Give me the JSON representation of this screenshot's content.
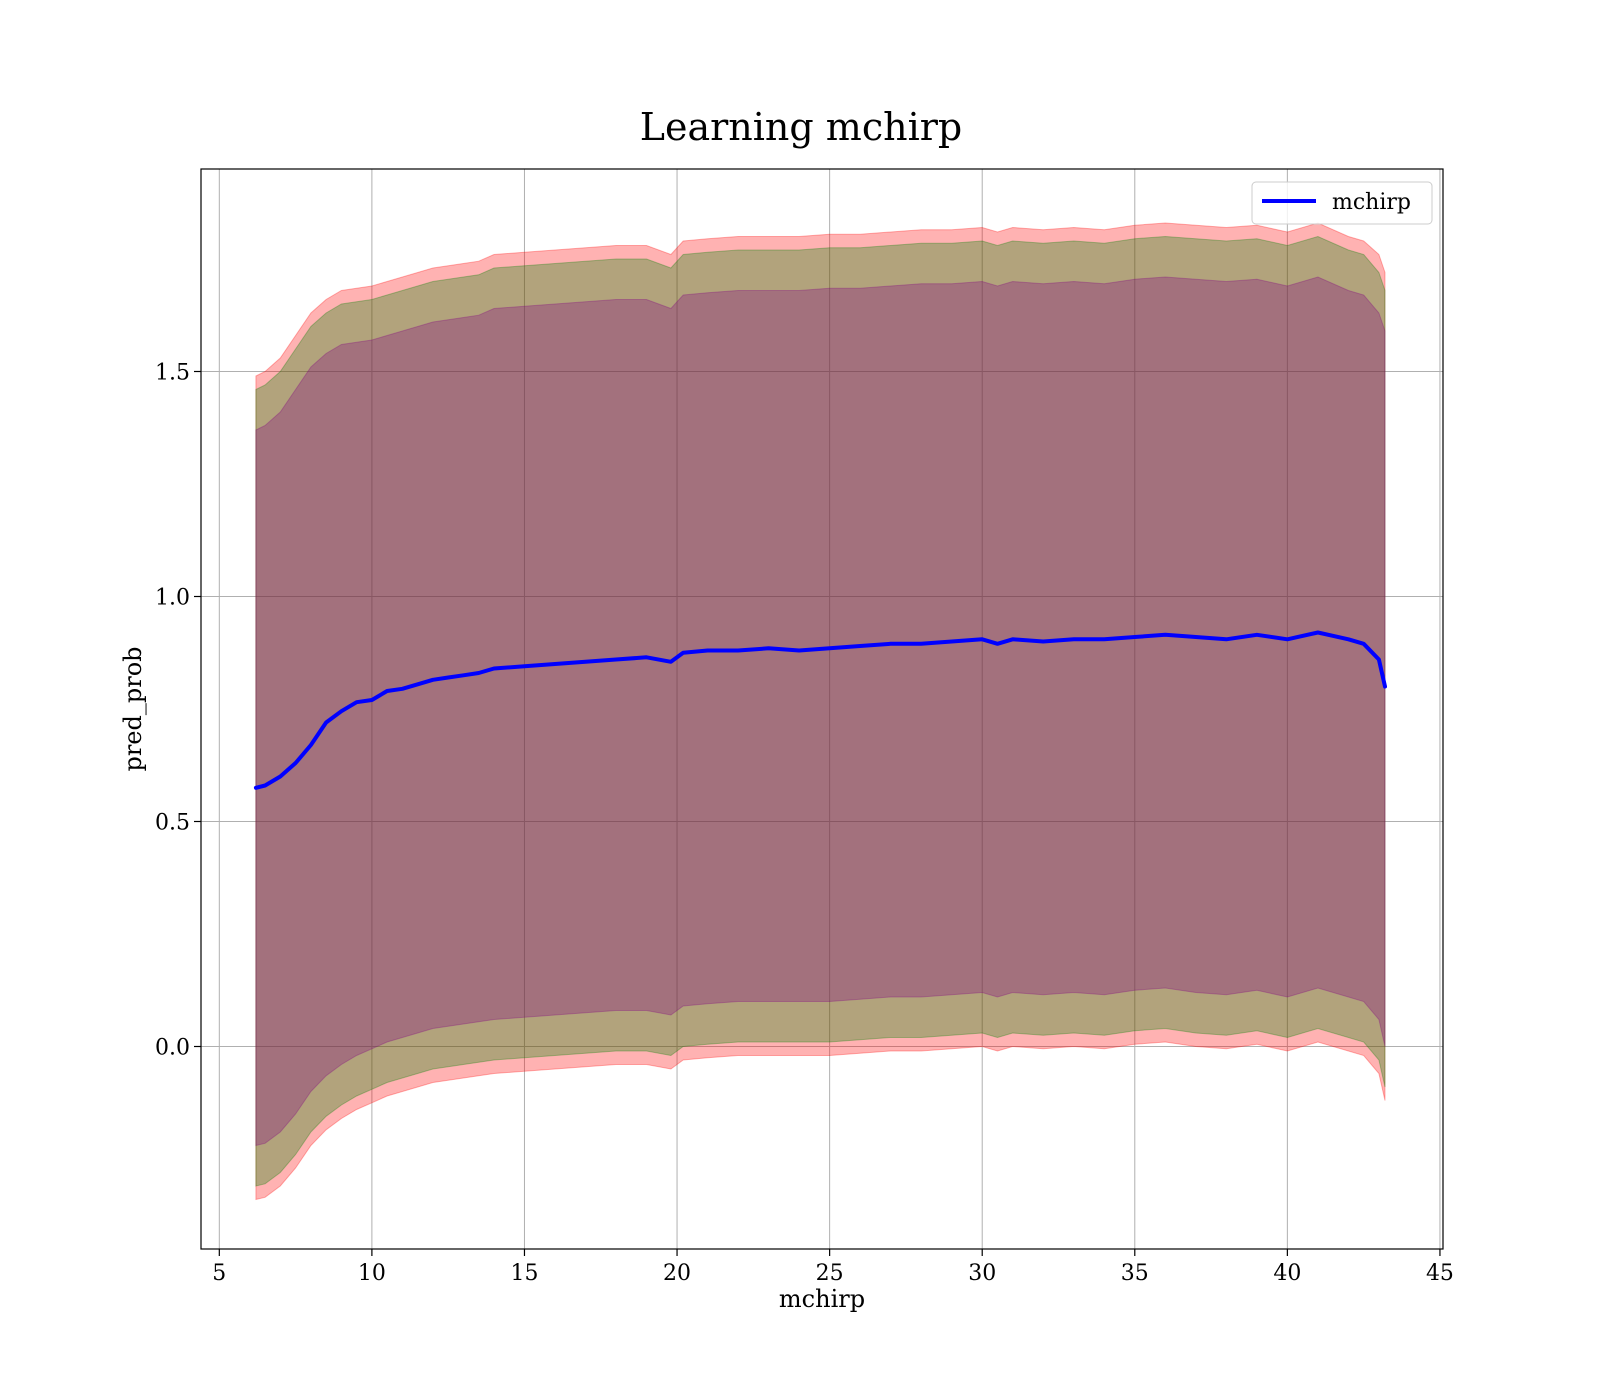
{
  "chart_data": {
    "type": "line",
    "title": "Learning mchirp",
    "xlabel": "mchirp",
    "ylabel": "pred_prob",
    "xlim": [
      4.4,
      45.1
    ],
    "ylim": [
      -0.45,
      1.95
    ],
    "xticks": [
      5,
      10,
      15,
      20,
      25,
      30,
      35,
      40,
      45
    ],
    "xtick_labels": [
      "5",
      "10",
      "15",
      "20",
      "25",
      "30",
      "35",
      "40",
      "45"
    ],
    "yticks": [
      0.0,
      0.5,
      1.0,
      1.5
    ],
    "ytick_labels": [
      "0.0",
      "0.5",
      "1.0",
      "1.5"
    ],
    "grid": true,
    "legend_position": "top-right",
    "x": [
      6.2,
      6.5,
      7.0,
      7.5,
      8.0,
      8.5,
      9.0,
      9.5,
      10.0,
      10.5,
      11.0,
      11.5,
      12.0,
      12.5,
      13.0,
      13.5,
      14.0,
      15.0,
      16.0,
      17.0,
      18.0,
      19.0,
      19.8,
      20.2,
      21.0,
      22.0,
      23.0,
      24.0,
      25.0,
      26.0,
      27.0,
      28.0,
      29.0,
      30.0,
      30.5,
      31.0,
      32.0,
      33.0,
      34.0,
      35.0,
      36.0,
      37.0,
      38.0,
      39.0,
      40.0,
      41.0,
      42.0,
      42.5,
      43.0,
      43.2
    ],
    "series": [
      {
        "name": "mchirp",
        "color": "#0000ff",
        "values": [
          0.575,
          0.58,
          0.6,
          0.63,
          0.67,
          0.72,
          0.745,
          0.765,
          0.77,
          0.79,
          0.795,
          0.805,
          0.815,
          0.82,
          0.825,
          0.83,
          0.84,
          0.845,
          0.85,
          0.855,
          0.86,
          0.865,
          0.855,
          0.875,
          0.88,
          0.88,
          0.885,
          0.88,
          0.885,
          0.89,
          0.895,
          0.895,
          0.9,
          0.905,
          0.895,
          0.905,
          0.9,
          0.905,
          0.905,
          0.91,
          0.915,
          0.91,
          0.905,
          0.915,
          0.905,
          0.92,
          0.905,
          0.895,
          0.86,
          0.8
        ]
      }
    ],
    "bands": [
      {
        "color": "#ff0000",
        "opacity": 0.3,
        "upper": [
          1.49,
          1.5,
          1.53,
          1.58,
          1.63,
          1.66,
          1.68,
          1.685,
          1.69,
          1.7,
          1.71,
          1.72,
          1.73,
          1.735,
          1.74,
          1.745,
          1.76,
          1.765,
          1.77,
          1.775,
          1.78,
          1.78,
          1.76,
          1.79,
          1.795,
          1.8,
          1.8,
          1.8,
          1.805,
          1.805,
          1.81,
          1.815,
          1.815,
          1.82,
          1.81,
          1.82,
          1.815,
          1.82,
          1.815,
          1.825,
          1.83,
          1.825,
          1.82,
          1.825,
          1.81,
          1.83,
          1.8,
          1.79,
          1.76,
          1.72
        ],
        "lower": [
          -0.34,
          -0.335,
          -0.31,
          -0.27,
          -0.22,
          -0.185,
          -0.16,
          -0.14,
          -0.125,
          -0.11,
          -0.1,
          -0.09,
          -0.08,
          -0.075,
          -0.07,
          -0.065,
          -0.06,
          -0.055,
          -0.05,
          -0.045,
          -0.04,
          -0.04,
          -0.05,
          -0.03,
          -0.025,
          -0.02,
          -0.02,
          -0.02,
          -0.02,
          -0.015,
          -0.01,
          -0.01,
          -0.005,
          0.0,
          -0.01,
          0.0,
          -0.005,
          0.0,
          -0.005,
          0.005,
          0.01,
          0.0,
          -0.005,
          0.005,
          -0.01,
          0.01,
          -0.01,
          -0.02,
          -0.06,
          -0.12
        ]
      },
      {
        "color": "#008000",
        "opacity": 0.3,
        "upper": [
          1.46,
          1.47,
          1.5,
          1.55,
          1.6,
          1.63,
          1.65,
          1.655,
          1.66,
          1.67,
          1.68,
          1.69,
          1.7,
          1.705,
          1.71,
          1.715,
          1.73,
          1.735,
          1.74,
          1.745,
          1.75,
          1.75,
          1.73,
          1.76,
          1.765,
          1.77,
          1.77,
          1.77,
          1.775,
          1.775,
          1.78,
          1.785,
          1.785,
          1.79,
          1.78,
          1.79,
          1.785,
          1.79,
          1.785,
          1.795,
          1.8,
          1.795,
          1.79,
          1.795,
          1.78,
          1.8,
          1.77,
          1.76,
          1.72,
          1.68
        ],
        "lower": [
          -0.31,
          -0.305,
          -0.28,
          -0.24,
          -0.19,
          -0.155,
          -0.13,
          -0.11,
          -0.095,
          -0.08,
          -0.07,
          -0.06,
          -0.05,
          -0.045,
          -0.04,
          -0.035,
          -0.03,
          -0.025,
          -0.02,
          -0.015,
          -0.01,
          -0.01,
          -0.02,
          0.0,
          0.005,
          0.01,
          0.01,
          0.01,
          0.01,
          0.015,
          0.02,
          0.02,
          0.025,
          0.03,
          0.02,
          0.03,
          0.025,
          0.03,
          0.025,
          0.035,
          0.04,
          0.03,
          0.025,
          0.035,
          0.02,
          0.04,
          0.02,
          0.01,
          -0.03,
          -0.09
        ]
      },
      {
        "color": "#800080",
        "opacity": 0.3,
        "upper": [
          1.37,
          1.38,
          1.41,
          1.46,
          1.51,
          1.54,
          1.56,
          1.565,
          1.57,
          1.58,
          1.59,
          1.6,
          1.61,
          1.615,
          1.62,
          1.625,
          1.64,
          1.645,
          1.65,
          1.655,
          1.66,
          1.66,
          1.64,
          1.67,
          1.675,
          1.68,
          1.68,
          1.68,
          1.685,
          1.685,
          1.69,
          1.695,
          1.695,
          1.7,
          1.69,
          1.7,
          1.695,
          1.7,
          1.695,
          1.705,
          1.71,
          1.705,
          1.7,
          1.705,
          1.69,
          1.71,
          1.68,
          1.67,
          1.63,
          1.59
        ],
        "lower": [
          -0.22,
          -0.215,
          -0.19,
          -0.15,
          -0.1,
          -0.065,
          -0.04,
          -0.02,
          -0.005,
          0.01,
          0.02,
          0.03,
          0.04,
          0.045,
          0.05,
          0.055,
          0.06,
          0.065,
          0.07,
          0.075,
          0.08,
          0.08,
          0.07,
          0.09,
          0.095,
          0.1,
          0.1,
          0.1,
          0.1,
          0.105,
          0.11,
          0.11,
          0.115,
          0.12,
          0.11,
          0.12,
          0.115,
          0.12,
          0.115,
          0.125,
          0.13,
          0.12,
          0.115,
          0.125,
          0.11,
          0.13,
          0.11,
          0.1,
          0.06,
          0.0
        ]
      }
    ]
  }
}
